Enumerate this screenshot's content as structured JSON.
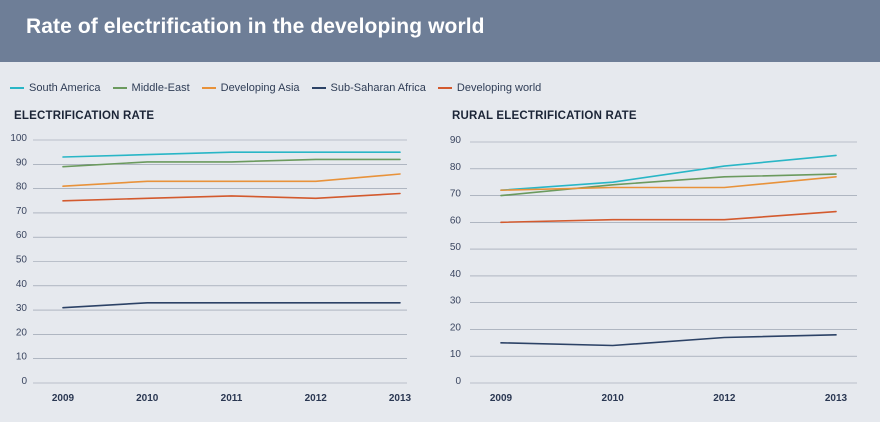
{
  "header": {
    "title": "Rate of electrification in the developing world"
  },
  "legend": [
    {
      "label": "South America",
      "color": "#29b6c6"
    },
    {
      "label": "Middle-East",
      "color": "#6b9a5e"
    },
    {
      "label": "Developing Asia",
      "color": "#e8923a"
    },
    {
      "label": "Sub-Saharan Africa",
      "color": "#2c4266"
    },
    {
      "label": "Developing world",
      "color": "#d35a2e"
    }
  ],
  "chart_data": [
    {
      "type": "line",
      "title": "ELECTRIFICATION RATE",
      "categories": [
        "2009",
        "2010",
        "2011",
        "2012",
        "2013"
      ],
      "ylim": [
        0,
        100
      ],
      "yticks": [
        "0",
        "10",
        "20",
        "30",
        "40",
        "50",
        "60",
        "70",
        "80",
        "90",
        "100"
      ],
      "xlabel": "",
      "ylabel": "",
      "series": [
        {
          "name": "South America",
          "values": [
            93,
            94,
            95,
            95,
            95
          ]
        },
        {
          "name": "Middle-East",
          "values": [
            89,
            91,
            91,
            92,
            92
          ]
        },
        {
          "name": "Developing Asia",
          "values": [
            81,
            83,
            83,
            83,
            86
          ]
        },
        {
          "name": "Sub-Saharan Africa",
          "values": [
            31,
            33,
            33,
            33,
            33
          ]
        },
        {
          "name": "Developing world",
          "values": [
            75,
            76,
            77,
            76,
            78
          ]
        }
      ]
    },
    {
      "type": "line",
      "title": "RURAL ELECTRIFICATION RATE",
      "categories": [
        "2009",
        "2010",
        "2012",
        "2013"
      ],
      "ylim": [
        0,
        90
      ],
      "yticks": [
        "0",
        "10",
        "20",
        "30",
        "40",
        "50",
        "60",
        "70",
        "80",
        "90"
      ],
      "xlabel": "",
      "ylabel": "",
      "series": [
        {
          "name": "South America",
          "values": [
            72,
            75,
            81,
            85
          ]
        },
        {
          "name": "Middle-East",
          "values": [
            70,
            74,
            77,
            78
          ]
        },
        {
          "name": "Developing Asia",
          "values": [
            72,
            73,
            73,
            77
          ]
        },
        {
          "name": "Sub-Saharan Africa",
          "values": [
            15,
            14,
            17,
            18
          ]
        },
        {
          "name": "Developing world",
          "values": [
            60,
            61,
            61,
            64
          ]
        }
      ]
    }
  ]
}
